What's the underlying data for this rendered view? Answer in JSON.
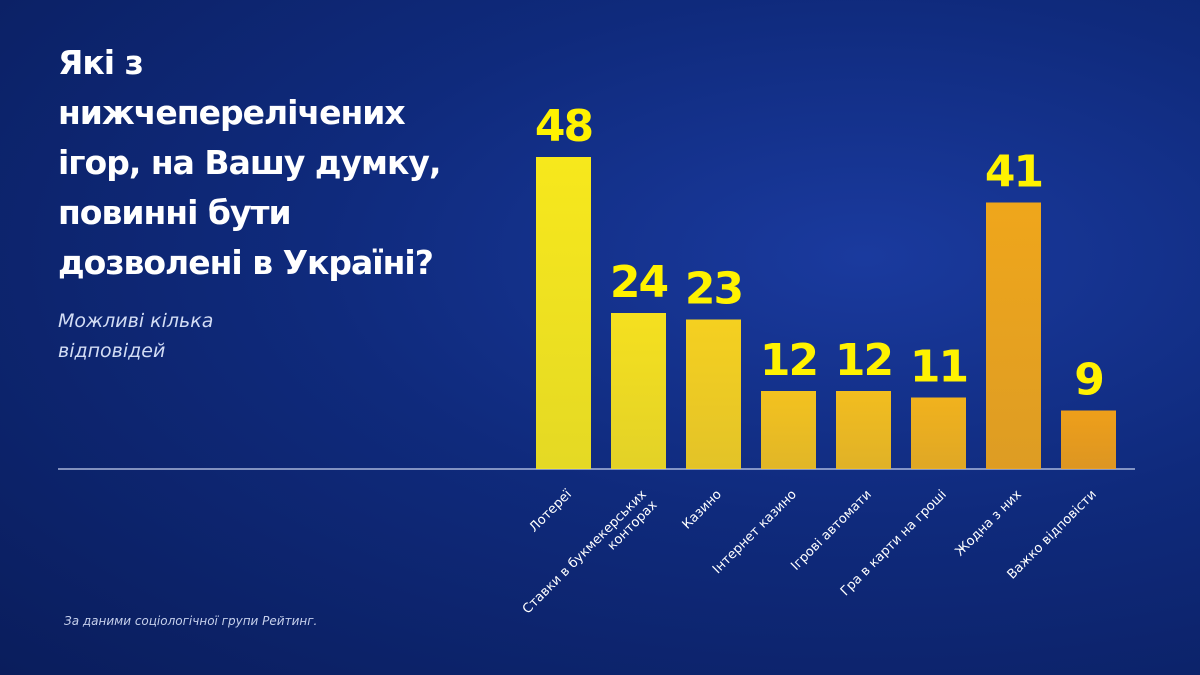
{
  "title": "Які з нижчеперелічених\nігор, на Вашу думку,\nповинні бути\nдозволені в Україні?",
  "subtitle": "Можливі кілька\nвідповідей",
  "source": "За даними соціологічної групи Рейтинг.",
  "colors": {
    "background": "#0f2a7c",
    "value_label": "#fff200",
    "axis": "#c8d2ee",
    "bar_gradient": [
      "#f7e81c",
      "#f5e01f",
      "#f5d020",
      "#f3c21f",
      "#f2bd1f",
      "#f1b21d",
      "#efa61b",
      "#ee9f1a"
    ]
  },
  "chart_data": {
    "type": "bar",
    "title": "Які з нижчеперелічених ігор, на Вашу думку, повинні бути дозволені в Україні?",
    "categories": [
      [
        "Лотереї"
      ],
      [
        "Ставки в букмекерських",
        "конторах"
      ],
      [
        "Казино"
      ],
      [
        "Інтернет казино"
      ],
      [
        "Ігрові автомати"
      ],
      [
        "Гра в карти на гроші"
      ],
      [
        "Жодна з них"
      ],
      [
        "Важко відповісти"
      ]
    ],
    "values": [
      48,
      24,
      23,
      12,
      12,
      11,
      41,
      9
    ],
    "ylim": [
      0,
      48
    ],
    "grid": false,
    "data_labels": true
  }
}
